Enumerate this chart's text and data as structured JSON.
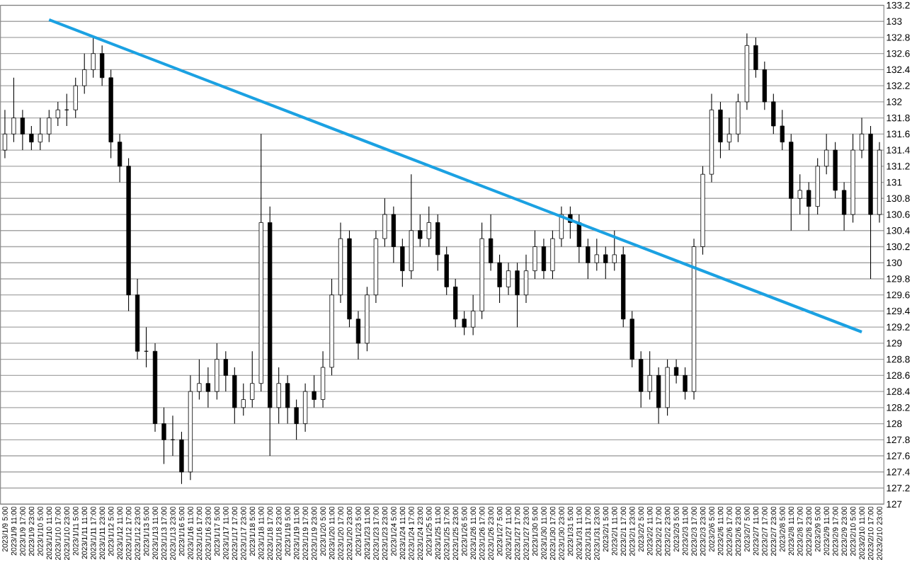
{
  "chart_data": {
    "type": "candlestick",
    "categories": [
      "2023/1/9 5:00",
      "2023/1/9 11:00",
      "2023/1/9 17:00",
      "2023/1/9 23:00",
      "2023/1/10 5:00",
      "2023/1/10 11:00",
      "2023/1/10 17:00",
      "2023/1/10 23:00",
      "2023/1/11 5:00",
      "2023/1/11 11:00",
      "2023/1/11 17:00",
      "2023/1/11 23:00",
      "2023/1/12 5:00",
      "2023/1/12 11:00",
      "2023/1/12 17:00",
      "2023/1/12 23:00",
      "2023/1/13 5:00",
      "2023/1/13 11:00",
      "2023/1/13 17:00",
      "2023/1/13 23:00",
      "2023/1/16 5:00",
      "2023/1/16 11:00",
      "2023/1/16 17:00",
      "2023/1/16 23:00",
      "2023/1/17 5:00",
      "2023/1/17 11:00",
      "2023/1/17 17:00",
      "2023/1/17 23:00",
      "2023/1/18 5:00",
      "2023/1/18 11:00",
      "2023/1/18 17:00",
      "2023/1/18 23:00",
      "2023/1/19 5:00",
      "2023/1/19 11:00",
      "2023/1/19 17:00",
      "2023/1/19 23:00",
      "2023/1/20 5:00",
      "2023/1/20 11:00",
      "2023/1/20 17:00",
      "2023/1/20 23:00",
      "2023/1/23 5:00",
      "2023/1/23 11:00",
      "2023/1/23 17:00",
      "2023/1/23 23:00",
      "2023/1/24 5:00",
      "2023/1/24 11:00",
      "2023/1/24 17:00",
      "2023/1/24 23:00",
      "2023/1/25 5:00",
      "2023/1/25 11:00",
      "2023/1/25 17:00",
      "2023/1/25 23:00",
      "2023/1/26 5:00",
      "2023/1/26 11:00",
      "2023/1/26 17:00",
      "2023/1/26 23:00",
      "2023/1/27 5:00",
      "2023/1/27 11:00",
      "2023/1/27 17:00",
      "2023/1/27 23:00",
      "2023/1/30 5:00",
      "2023/1/30 11:00",
      "2023/1/30 17:00",
      "2023/1/30 23:00",
      "2023/1/31 5:00",
      "2023/1/31 11:00",
      "2023/1/31 17:00",
      "2023/1/31 23:00",
      "2023/2/1 5:00",
      "2023/2/1 11:00",
      "2023/2/1 17:00",
      "2023/2/1 23:00",
      "2023/2/2 5:00",
      "2023/2/2 11:00",
      "2023/2/2 17:00",
      "2023/2/2 23:00",
      "2023/2/3 5:00",
      "2023/2/3 11:00",
      "2023/2/3 17:00",
      "2023/2/3 23:00",
      "2023/2/6 5:00",
      "2023/2/6 11:00",
      "2023/2/6 17:00",
      "2023/2/6 23:00",
      "2023/2/7 5:00",
      "2023/2/7 11:00",
      "2023/2/7 17:00",
      "2023/2/7 23:00",
      "2023/2/8 5:00",
      "2023/2/8 11:00",
      "2023/2/8 17:00",
      "2023/2/8 23:00",
      "2023/2/9 5:00",
      "2023/2/9 11:00",
      "2023/2/9 17:00",
      "2023/2/9 23:00",
      "2023/2/10 5:00",
      "2023/2/10 11:00",
      "2023/2/10 17:00",
      "2023/2/10 23:00"
    ],
    "ohlc": [
      [
        131.4,
        131.9,
        131.3,
        131.6
      ],
      [
        131.6,
        132.3,
        131.5,
        131.8
      ],
      [
        131.8,
        131.9,
        131.4,
        131.6
      ],
      [
        131.6,
        131.7,
        131.4,
        131.5
      ],
      [
        131.5,
        131.8,
        131.4,
        131.6
      ],
      [
        131.6,
        131.9,
        131.5,
        131.8
      ],
      [
        131.8,
        132.0,
        131.7,
        131.9
      ],
      [
        131.9,
        132.1,
        131.7,
        131.9
      ],
      [
        131.9,
        132.3,
        131.8,
        132.2
      ],
      [
        132.2,
        132.6,
        132.1,
        132.4
      ],
      [
        132.4,
        132.8,
        132.3,
        132.6
      ],
      [
        132.6,
        132.7,
        132.2,
        132.3
      ],
      [
        132.3,
        132.4,
        131.3,
        131.5
      ],
      [
        131.5,
        131.6,
        131.0,
        131.2
      ],
      [
        131.2,
        131.3,
        129.4,
        129.6
      ],
      [
        129.6,
        129.8,
        128.8,
        128.9
      ],
      [
        128.9,
        129.2,
        128.7,
        128.9
      ],
      [
        128.9,
        129.0,
        127.9,
        128.0
      ],
      [
        128.0,
        128.2,
        127.5,
        127.8
      ],
      [
        127.8,
        128.1,
        127.6,
        127.8
      ],
      [
        127.8,
        127.9,
        127.25,
        127.4
      ],
      [
        127.4,
        128.6,
        127.3,
        128.4
      ],
      [
        128.4,
        128.8,
        128.3,
        128.5
      ],
      [
        128.5,
        128.7,
        128.2,
        128.4
      ],
      [
        128.4,
        129.0,
        128.3,
        128.8
      ],
      [
        128.8,
        128.9,
        128.4,
        128.6
      ],
      [
        128.6,
        128.7,
        128.0,
        128.2
      ],
      [
        128.2,
        128.5,
        128.1,
        128.3
      ],
      [
        128.3,
        128.9,
        128.2,
        128.5
      ],
      [
        128.5,
        131.6,
        128.4,
        130.5
      ],
      [
        130.5,
        130.7,
        127.6,
        128.2
      ],
      [
        128.2,
        128.7,
        128.0,
        128.5
      ],
      [
        128.5,
        128.6,
        128.0,
        128.2
      ],
      [
        128.2,
        128.3,
        127.8,
        128.0
      ],
      [
        128.0,
        128.5,
        127.9,
        128.4
      ],
      [
        128.4,
        128.6,
        128.2,
        128.3
      ],
      [
        128.3,
        128.9,
        128.2,
        128.7
      ],
      [
        128.7,
        129.8,
        128.6,
        129.6
      ],
      [
        129.6,
        130.5,
        129.5,
        130.3
      ],
      [
        130.3,
        130.4,
        129.2,
        129.3
      ],
      [
        129.3,
        129.4,
        128.8,
        129.0
      ],
      [
        129.0,
        129.7,
        128.9,
        129.6
      ],
      [
        129.6,
        130.4,
        129.5,
        130.3
      ],
      [
        130.3,
        130.8,
        130.2,
        130.6
      ],
      [
        130.6,
        130.7,
        130.0,
        130.2
      ],
      [
        130.2,
        130.3,
        129.7,
        129.9
      ],
      [
        129.9,
        131.1,
        129.8,
        130.4
      ],
      [
        130.4,
        130.6,
        130.2,
        130.3
      ],
      [
        130.3,
        130.7,
        130.2,
        130.5
      ],
      [
        130.5,
        130.6,
        129.9,
        130.1
      ],
      [
        130.1,
        130.2,
        129.6,
        129.7
      ],
      [
        129.7,
        129.8,
        129.2,
        129.3
      ],
      [
        129.3,
        129.4,
        129.1,
        129.2
      ],
      [
        129.2,
        129.6,
        129.1,
        129.4
      ],
      [
        129.4,
        130.5,
        129.3,
        130.3
      ],
      [
        130.3,
        130.6,
        129.9,
        130.0
      ],
      [
        130.0,
        130.1,
        129.5,
        129.7
      ],
      [
        129.7,
        130.0,
        129.6,
        129.9
      ],
      [
        129.9,
        130.0,
        129.2,
        129.6
      ],
      [
        129.6,
        130.1,
        129.5,
        129.9
      ],
      [
        129.9,
        130.4,
        129.8,
        130.2
      ],
      [
        130.2,
        130.3,
        129.8,
        129.9
      ],
      [
        129.9,
        130.4,
        129.8,
        130.3
      ],
      [
        130.3,
        130.7,
        130.2,
        130.6
      ],
      [
        130.6,
        130.7,
        130.3,
        130.5
      ],
      [
        130.5,
        130.6,
        130.0,
        130.2
      ],
      [
        130.2,
        130.3,
        129.8,
        130.0
      ],
      [
        130.0,
        130.3,
        129.9,
        130.1
      ],
      [
        130.1,
        130.2,
        129.8,
        130.0
      ],
      [
        130.0,
        130.4,
        129.9,
        130.1
      ],
      [
        130.1,
        130.2,
        129.2,
        129.3
      ],
      [
        129.3,
        129.4,
        128.7,
        128.8
      ],
      [
        128.8,
        128.9,
        128.2,
        128.4
      ],
      [
        128.4,
        128.9,
        128.3,
        128.6
      ],
      [
        128.6,
        128.7,
        128.0,
        128.2
      ],
      [
        128.2,
        128.8,
        128.1,
        128.7
      ],
      [
        128.7,
        128.8,
        128.5,
        128.6
      ],
      [
        128.6,
        128.7,
        128.3,
        128.4
      ],
      [
        128.4,
        130.3,
        128.3,
        130.2
      ],
      [
        130.2,
        131.2,
        130.1,
        131.1
      ],
      [
        131.1,
        132.1,
        131.0,
        131.9
      ],
      [
        131.9,
        132.0,
        131.3,
        131.5
      ],
      [
        131.5,
        131.8,
        131.4,
        131.6
      ],
      [
        131.6,
        132.1,
        131.5,
        132.0
      ],
      [
        132.0,
        132.85,
        131.9,
        132.7
      ],
      [
        132.7,
        132.8,
        132.3,
        132.4
      ],
      [
        132.4,
        132.5,
        131.9,
        132.0
      ],
      [
        132.0,
        132.1,
        131.6,
        131.7
      ],
      [
        131.7,
        131.9,
        131.4,
        131.5
      ],
      [
        131.5,
        131.6,
        130.4,
        130.8
      ],
      [
        130.8,
        131.1,
        130.6,
        130.9
      ],
      [
        130.9,
        131.0,
        130.4,
        130.7
      ],
      [
        130.7,
        131.3,
        130.6,
        131.2
      ],
      [
        131.2,
        131.6,
        131.1,
        131.4
      ],
      [
        131.4,
        131.5,
        130.8,
        130.9
      ],
      [
        130.9,
        131.0,
        130.4,
        130.6
      ],
      [
        130.6,
        131.6,
        130.5,
        131.4
      ],
      [
        131.4,
        131.8,
        131.3,
        131.6
      ],
      [
        131.6,
        131.7,
        129.8,
        130.6
      ],
      [
        130.6,
        131.5,
        130.5,
        131.4
      ]
    ],
    "series": [
      {
        "type": "line",
        "x": [
          "2023/1/10 11:00",
          "2023/2/10 11:00"
        ],
        "values": [
          133.02,
          129.14
        ],
        "color": "#1ba1e2"
      }
    ],
    "ylim": [
      127,
      133.2
    ],
    "yticks": [
      127,
      127.2,
      127.4,
      127.6,
      127.8,
      128,
      128.2,
      128.4,
      128.6,
      128.8,
      129,
      129.2,
      129.4,
      129.6,
      129.8,
      130,
      130.2,
      130.4,
      130.6,
      130.8,
      131,
      131.2,
      131.4,
      131.6,
      131.8,
      132,
      132.2,
      132.4,
      132.6,
      132.8,
      133,
      133.2
    ],
    "grid": "y",
    "marker": "none"
  }
}
